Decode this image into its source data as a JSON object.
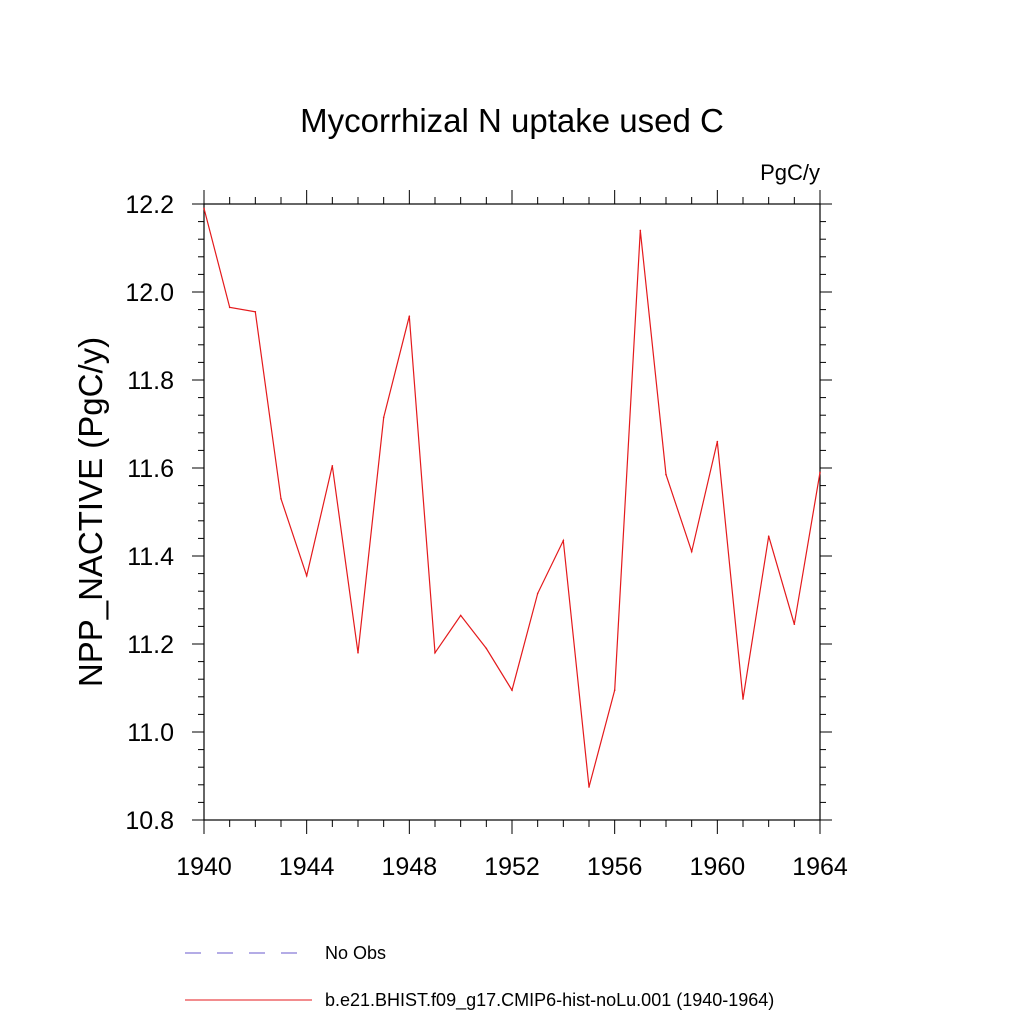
{
  "chart_data": {
    "type": "line",
    "title": "Mycorrhizal N uptake used C",
    "units_label": "PgC/y",
    "ylabel": "NPP_NACTIVE  (PgC/y)",
    "xlabel": "",
    "xlim": [
      1940,
      1964
    ],
    "ylim": [
      10.8,
      12.2
    ],
    "x_ticks": [
      1940,
      1944,
      1948,
      1952,
      1956,
      1960,
      1964
    ],
    "y_ticks": [
      "10.8",
      "11.0",
      "11.2",
      "11.4",
      "11.6",
      "11.8",
      "12.0",
      "12.2"
    ],
    "grid": false,
    "legend_position": "bottom",
    "series": [
      {
        "name": "b.e21.BHIST.f09_g17.CMIP6-hist-noLu.001 (1940-1964)",
        "color": "#e41a1c",
        "style": "solid",
        "x": [
          1940,
          1941,
          1942,
          1943,
          1944,
          1945,
          1946,
          1947,
          1948,
          1949,
          1950,
          1951,
          1952,
          1953,
          1954,
          1955,
          1956,
          1957,
          1958,
          1959,
          1960,
          1961,
          1962,
          1963,
          1964
        ],
        "y": [
          12.19,
          11.965,
          11.955,
          11.53,
          11.355,
          11.605,
          11.18,
          11.715,
          11.945,
          11.18,
          11.265,
          11.19,
          11.095,
          11.315,
          11.435,
          10.875,
          11.095,
          12.14,
          11.585,
          11.41,
          11.66,
          11.075,
          11.445,
          11.245,
          11.59
        ]
      }
    ],
    "legend": [
      {
        "label": "No Obs",
        "color": "#6a5acd",
        "style": "dashed"
      },
      {
        "label": "b.e21.BHIST.f09_g17.CMIP6-hist-noLu.001 (1940-1964)",
        "color": "#e41a1c",
        "style": "solid"
      }
    ]
  }
}
